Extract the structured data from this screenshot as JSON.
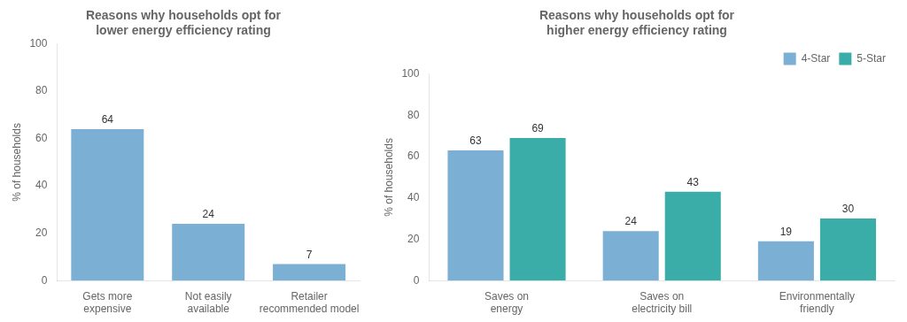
{
  "chart_data": [
    {
      "type": "bar",
      "title": "Reasons why households opt for\nlower energy efficiency rating",
      "categories": [
        "Gets more\nexpensive",
        "Not easily\navailable",
        "Retailer\nrecommended model"
      ],
      "values": [
        64,
        24,
        7
      ],
      "color": "#7BAFD4",
      "ylabel": "% of households",
      "ylim": [
        0,
        100
      ],
      "yticks": [
        0,
        20,
        40,
        60,
        80,
        100
      ],
      "grid": false,
      "data_labels": true
    },
    {
      "type": "bar",
      "title": "Reasons why households opt for\nhigher energy efficiency rating",
      "categories": [
        "Saves on\nenergy",
        "Saves on\nelectricity bill",
        "Environmentally\nfriendly"
      ],
      "series": [
        {
          "name": "4-Star",
          "color": "#7BAFD4",
          "values": [
            63,
            24,
            19
          ]
        },
        {
          "name": "5-Star",
          "color": "#3AADA8",
          "values": [
            69,
            43,
            30
          ]
        }
      ],
      "ylabel": "% of households",
      "ylim": [
        0,
        100
      ],
      "yticks": [
        0,
        20,
        40,
        60,
        80,
        100
      ],
      "grid": false,
      "legend": "upper right",
      "data_labels": true
    }
  ]
}
